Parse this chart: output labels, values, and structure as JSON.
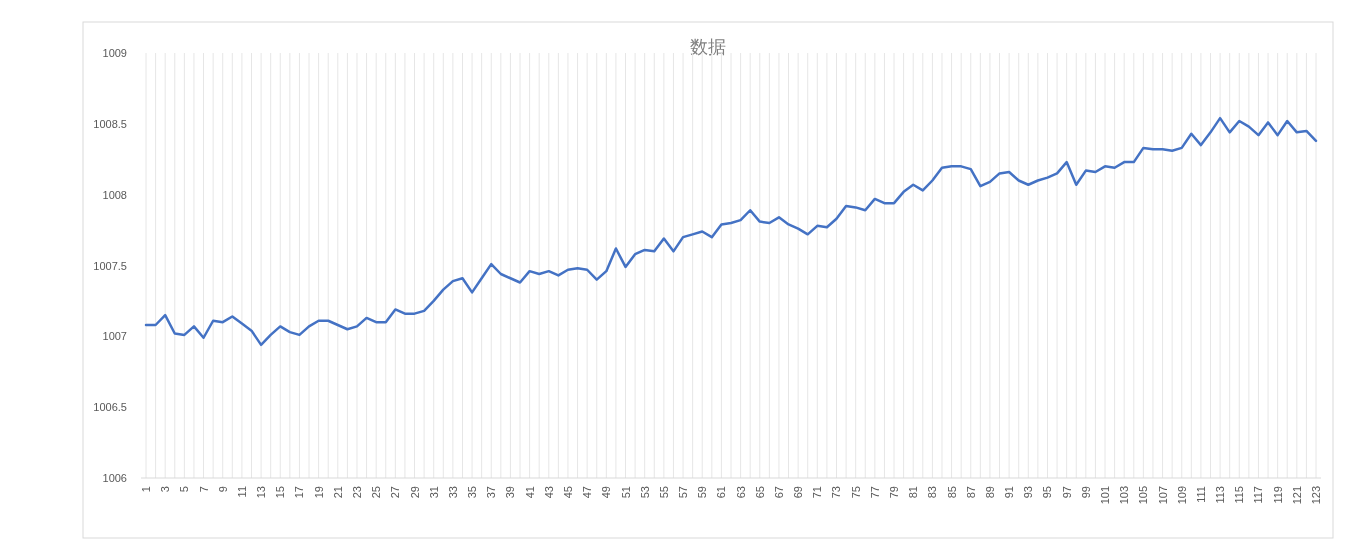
{
  "chart_data": {
    "type": "line",
    "title": "数据",
    "categories": [
      "1",
      null,
      "3",
      null,
      "5",
      null,
      "7",
      null,
      "9",
      null,
      "11",
      null,
      "13",
      null,
      "15",
      null,
      "17",
      null,
      "19",
      null,
      "21",
      null,
      "23",
      null,
      "25",
      null,
      "27",
      null,
      "29",
      null,
      "31",
      null,
      "33",
      null,
      "35",
      null,
      "37",
      null,
      "39",
      null,
      "41",
      null,
      "43",
      null,
      "45",
      null,
      "47",
      null,
      "49",
      null,
      "51",
      null,
      "53",
      null,
      "55",
      null,
      "57",
      null,
      "59",
      null,
      "61",
      null,
      "63",
      null,
      "65",
      null,
      "67",
      null,
      "69",
      null,
      "71",
      null,
      "73",
      null,
      "75",
      null,
      "77",
      null,
      "79",
      null,
      "81",
      null,
      "83",
      null,
      "85",
      null,
      "87",
      null,
      "89",
      null,
      "91",
      null,
      "93",
      null,
      "95",
      null,
      "97",
      null,
      "99",
      null,
      "101",
      null,
      "103",
      null,
      "105",
      null,
      "107",
      null,
      "109",
      null,
      "111",
      null,
      "113",
      null,
      "115",
      null,
      "117",
      null,
      "119",
      null,
      "121",
      null,
      "123"
    ],
    "series": [
      {
        "color": "#4472c4",
        "values": [
          1007.08,
          1007.08,
          1007.15,
          1007.02,
          1007.01,
          1007.07,
          1006.99,
          1007.11,
          1007.1,
          1007.14,
          1007.09,
          1007.04,
          1006.94,
          1007.01,
          1007.07,
          1007.03,
          1007.01,
          1007.07,
          1007.11,
          1007.11,
          1007.08,
          1007.05,
          1007.07,
          1007.13,
          1007.1,
          1007.1,
          1007.19,
          1007.16,
          1007.16,
          1007.18,
          1007.25,
          1007.33,
          1007.39,
          1007.41,
          1007.31,
          1007.41,
          1007.51,
          1007.44,
          1007.41,
          1007.38,
          1007.46,
          1007.44,
          1007.46,
          1007.43,
          1007.47,
          1007.48,
          1007.47,
          1007.4,
          1007.46,
          1007.62,
          1007.49,
          1007.58,
          1007.61,
          1007.6,
          1007.69,
          1007.6,
          1007.7,
          1007.72,
          1007.74,
          1007.7,
          1007.79,
          1007.8,
          1007.82,
          1007.89,
          1007.81,
          1007.8,
          1007.84,
          1007.79,
          1007.76,
          1007.72,
          1007.78,
          1007.77,
          1007.83,
          1007.92,
          1007.91,
          1007.89,
          1007.97,
          1007.94,
          1007.94,
          1008.02,
          1008.07,
          1008.03,
          1008.1,
          1008.19,
          1008.2,
          1008.2,
          1008.18,
          1008.06,
          1008.09,
          1008.15,
          1008.16,
          1008.1,
          1008.07,
          1008.1,
          1008.12,
          1008.15,
          1008.23,
          1008.07,
          1008.17,
          1008.16,
          1008.2,
          1008.19,
          1008.23,
          1008.23,
          1008.33,
          1008.32,
          1008.32,
          1008.31,
          1008.33,
          1008.43,
          1008.35,
          1008.44,
          1008.54,
          1008.44,
          1008.52,
          1008.48,
          1008.42,
          1008.51,
          1008.42,
          1008.52,
          1008.44,
          1008.45,
          1008.38
        ]
      }
    ],
    "ylim": [
      1006,
      1009
    ],
    "yticks": [
      1006,
      1006.5,
      1007,
      1007.5,
      1008,
      1008.5,
      1009
    ],
    "line_style": "solid",
    "marker": "none",
    "grid": "x"
  }
}
